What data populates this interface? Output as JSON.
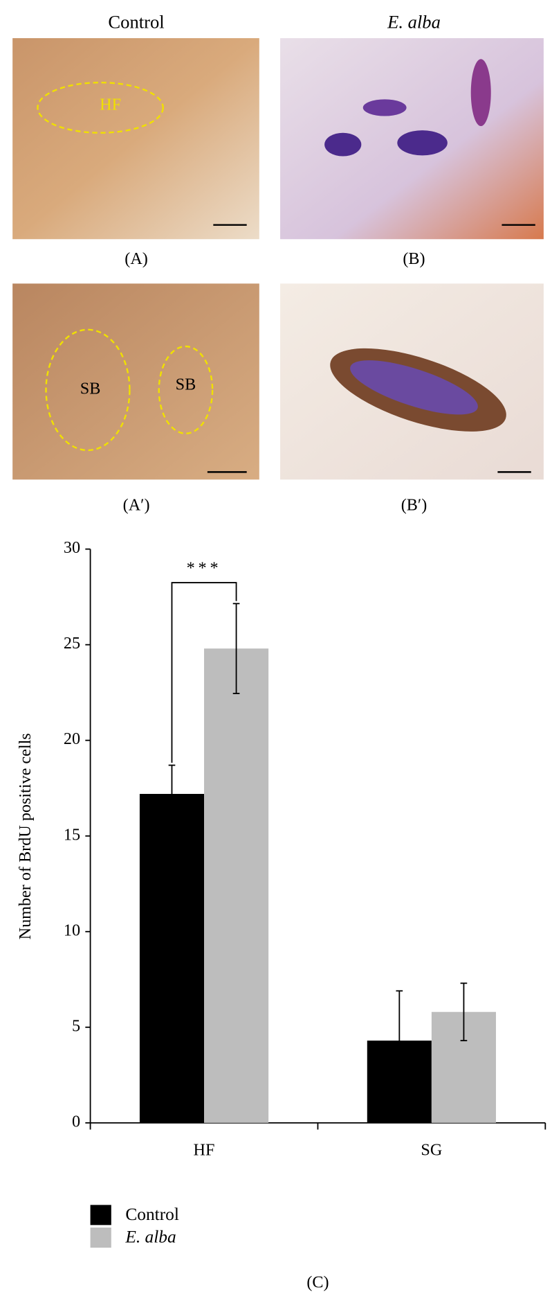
{
  "figure": {
    "column_headers": [
      "Control",
      "E. alba"
    ],
    "panels": [
      {
        "label": "(A)",
        "annotations": [
          "HF"
        ]
      },
      {
        "label": "(B)",
        "annotations": []
      },
      {
        "label": "(A′)",
        "annotations": [
          "SB",
          "SB"
        ]
      },
      {
        "label": "(B′)",
        "annotations": []
      }
    ],
    "chart_label": "(C)"
  },
  "chart_data": {
    "type": "bar",
    "y_label": "Number of BrdU positive cells",
    "categories": [
      "HF",
      "SG"
    ],
    "series": [
      {
        "name": "Control",
        "color": "#000000",
        "values": [
          17.2,
          4.3
        ],
        "errors": [
          1.5,
          2.6
        ]
      },
      {
        "name": "E. alba",
        "color": "#bdbdbd",
        "values": [
          24.8,
          5.8
        ],
        "errors": [
          2.35,
          1.5
        ]
      }
    ],
    "ylim": [
      0,
      30
    ],
    "yticks": [
      0,
      5,
      10,
      15,
      20,
      25,
      30
    ],
    "significance": {
      "category": 0,
      "label": "***"
    },
    "legend": "bottom-left"
  }
}
